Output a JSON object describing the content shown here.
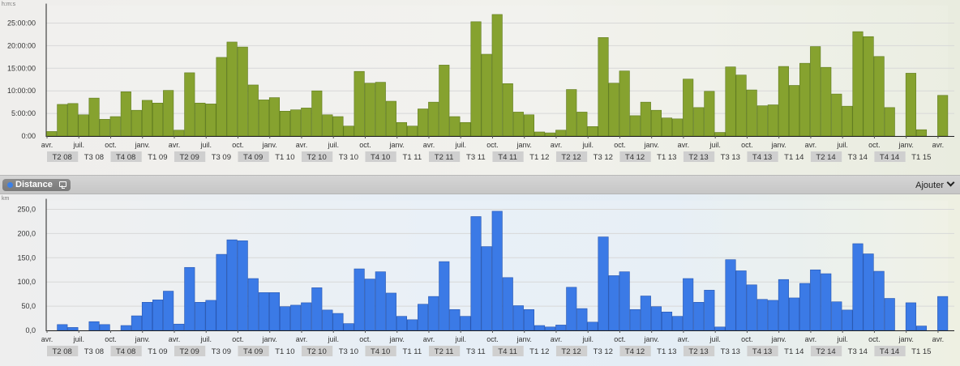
{
  "top_chart": {
    "unit": "h:m:s",
    "accent": "#86a22f",
    "yticks": [
      "0:00",
      "5:00:00",
      "10:00:00",
      "15:00:00",
      "20:00:00",
      "25:00:00"
    ]
  },
  "header": {
    "metric_label": "Distance",
    "add_label": "Ajouter"
  },
  "bottom_chart": {
    "unit": "km",
    "accent": "#3b7ae6",
    "yticks": [
      "0,0",
      "50,0",
      "100,0",
      "150,0",
      "200,0",
      "250,0"
    ]
  },
  "month_labels": [
    "avr.",
    "juil.",
    "oct.",
    "janv.",
    "avr.",
    "juil.",
    "oct.",
    "janv.",
    "avr.",
    "juil.",
    "oct.",
    "janv.",
    "avr.",
    "juil.",
    "oct.",
    "janv.",
    "avr.",
    "juil.",
    "oct.",
    "janv.",
    "avr.",
    "juil.",
    "oct.",
    "janv.",
    "avr.",
    "juil.",
    "oct.",
    "janv.",
    "avr."
  ],
  "quarter_labels": [
    "T2 08",
    "T3 08",
    "T4 08",
    "T1 09",
    "T2 09",
    "T3 09",
    "T4 09",
    "T1 10",
    "T2 10",
    "T3 10",
    "T4 10",
    "T1 11",
    "T2 11",
    "T3 11",
    "T4 11",
    "T1 12",
    "T2 12",
    "T3 12",
    "T4 12",
    "T1 13",
    "T2 13",
    "T3 13",
    "T4 13",
    "T1 14",
    "T2 14",
    "T3 14",
    "T4 14",
    "T1 15"
  ],
  "chart_data": [
    {
      "type": "bar",
      "ylabel": "h:m:s",
      "ylim": [
        0,
        27.5
      ],
      "y_unit_of_values": "hours",
      "grid": true,
      "first_month": "2008-04",
      "values": [
        1.0,
        7.0,
        7.2,
        4.7,
        8.4,
        3.7,
        4.3,
        9.8,
        5.7,
        7.9,
        7.3,
        10.1,
        1.3,
        14.0,
        7.3,
        7.1,
        17.4,
        20.8,
        19.7,
        11.3,
        8.0,
        8.5,
        5.5,
        5.8,
        6.2,
        10.0,
        4.7,
        4.3,
        2.2,
        14.3,
        11.7,
        11.9,
        7.7,
        3.0,
        2.2,
        6.0,
        7.5,
        15.7,
        4.3,
        3.0,
        25.3,
        18.1,
        26.9,
        11.6,
        5.3,
        4.7,
        0.9,
        0.7,
        1.3,
        10.3,
        5.3,
        2.1,
        21.8,
        11.7,
        14.4,
        4.5,
        7.5,
        5.7,
        4.0,
        3.8,
        12.6,
        6.3,
        9.9,
        0.8,
        15.3,
        13.5,
        10.2,
        6.7,
        6.9,
        15.4,
        11.2,
        16.1,
        19.8,
        15.2,
        9.3,
        6.6,
        23.1,
        22.0,
        17.6,
        6.3,
        0,
        13.9,
        1.4,
        0,
        9.0
      ]
    },
    {
      "type": "bar",
      "ylabel": "km",
      "ylim": [
        0,
        255
      ],
      "grid": true,
      "first_month": "2008-04",
      "values": [
        0,
        12,
        6,
        0,
        18,
        12,
        0,
        10,
        30,
        58,
        63,
        81,
        13,
        130,
        58,
        62,
        157,
        187,
        185,
        107,
        78,
        78,
        49,
        52,
        57,
        88,
        42,
        35,
        14,
        127,
        106,
        121,
        77,
        29,
        22,
        54,
        70,
        142,
        43,
        29,
        235,
        173,
        246,
        109,
        51,
        43,
        10,
        7,
        11,
        89,
        45,
        17,
        193,
        113,
        121,
        43,
        71,
        49,
        38,
        29,
        107,
        58,
        83,
        7,
        146,
        123,
        94,
        64,
        62,
        105,
        67,
        97,
        125,
        117,
        59,
        42,
        179,
        158,
        122,
        66,
        0,
        57,
        9,
        0,
        70
      ]
    }
  ]
}
